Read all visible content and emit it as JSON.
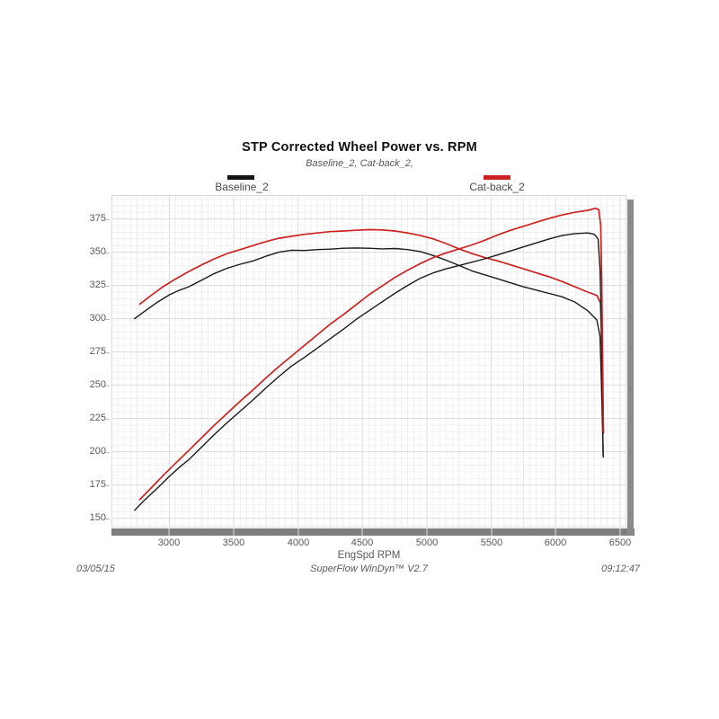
{
  "legend": [
    {
      "label": "Baseline_2",
      "color": "#141414"
    },
    {
      "label": "Cat-back_2",
      "color": "#cc2222"
    }
  ],
  "footer": {
    "date": "03/05/15",
    "app": "SuperFlow WinDyn™ V2.7",
    "time": "09:12:47"
  },
  "colors": {
    "baseline_line": "#1a1a1a",
    "catback_line": "#cc2222",
    "grid_major": "#dbdbdb",
    "grid_mid": "#e7e7e7",
    "grid_minor": "#f1f1f1",
    "axis_bar": "#7e7e7e"
  },
  "chart_data": {
    "type": "line",
    "title": "STP Corrected Wheel Power vs. RPM",
    "subtitle": "Baseline_2, Cat-back_2,",
    "xlabel": "EngSpd RPM",
    "ylabel": "",
    "xlim": [
      2550,
      6550
    ],
    "ylim": [
      143,
      393
    ],
    "x_ticks": [
      3000,
      3500,
      4000,
      4500,
      5000,
      5500,
      6000,
      6500
    ],
    "y_ticks": [
      150,
      175,
      200,
      225,
      250,
      275,
      300,
      325,
      350,
      375
    ],
    "grid": {
      "x_minor": 50,
      "x_mid": 250,
      "x_major": 500,
      "y_minor": 5,
      "y_major": 25,
      "on": true
    },
    "legend_position": "top",
    "series": [
      {
        "name": "Baseline_2 torque",
        "color": "#1a1a1a",
        "width": 1.4,
        "points": [
          [
            2730,
            300
          ],
          [
            2800,
            305
          ],
          [
            2900,
            312
          ],
          [
            3000,
            318
          ],
          [
            3080,
            321.5
          ],
          [
            3150,
            324
          ],
          [
            3250,
            329
          ],
          [
            3350,
            334
          ],
          [
            3450,
            338
          ],
          [
            3550,
            341
          ],
          [
            3650,
            343.5
          ],
          [
            3750,
            347
          ],
          [
            3850,
            350
          ],
          [
            3950,
            351.5
          ],
          [
            4050,
            351.3
          ],
          [
            4150,
            352
          ],
          [
            4250,
            352.3
          ],
          [
            4350,
            353
          ],
          [
            4450,
            353.2
          ],
          [
            4550,
            353
          ],
          [
            4650,
            352.5
          ],
          [
            4750,
            352.8
          ],
          [
            4850,
            352
          ],
          [
            4950,
            350.5
          ],
          [
            5050,
            347.5
          ],
          [
            5150,
            344
          ],
          [
            5250,
            340
          ],
          [
            5350,
            336
          ],
          [
            5450,
            333
          ],
          [
            5550,
            330
          ],
          [
            5650,
            327
          ],
          [
            5750,
            324
          ],
          [
            5850,
            321.5
          ],
          [
            5950,
            319
          ],
          [
            6050,
            316.5
          ],
          [
            6150,
            312.5
          ],
          [
            6250,
            306
          ],
          [
            6320,
            299
          ],
          [
            6345,
            287
          ],
          [
            6356,
            252
          ],
          [
            6364,
            218
          ],
          [
            6370,
            196
          ]
        ]
      },
      {
        "name": "Cat-back_2 torque",
        "color": "#cc2222",
        "width": 1.7,
        "points": [
          [
            2770,
            311
          ],
          [
            2850,
            317
          ],
          [
            2950,
            324
          ],
          [
            3050,
            330
          ],
          [
            3150,
            335.5
          ],
          [
            3250,
            340.5
          ],
          [
            3350,
            345
          ],
          [
            3450,
            349
          ],
          [
            3550,
            352
          ],
          [
            3650,
            355
          ],
          [
            3750,
            358
          ],
          [
            3850,
            360.5
          ],
          [
            3950,
            362
          ],
          [
            4050,
            363.5
          ],
          [
            4150,
            364.5
          ],
          [
            4250,
            365.5
          ],
          [
            4350,
            366
          ],
          [
            4450,
            366.5
          ],
          [
            4550,
            367
          ],
          [
            4650,
            366.8
          ],
          [
            4750,
            366
          ],
          [
            4850,
            364.5
          ],
          [
            4950,
            362.5
          ],
          [
            5050,
            360
          ],
          [
            5150,
            356.5
          ],
          [
            5250,
            352.5
          ],
          [
            5350,
            349
          ],
          [
            5450,
            346
          ],
          [
            5550,
            343.5
          ],
          [
            5650,
            340.5
          ],
          [
            5750,
            337.5
          ],
          [
            5850,
            334.5
          ],
          [
            5950,
            331.5
          ],
          [
            6050,
            328
          ],
          [
            6150,
            324
          ],
          [
            6250,
            320
          ],
          [
            6320,
            317.5
          ],
          [
            6348,
            312
          ],
          [
            6358,
            284
          ],
          [
            6366,
            244
          ],
          [
            6371,
            214
          ]
        ]
      },
      {
        "name": "Baseline_2 power",
        "color": "#1a1a1a",
        "width": 1.4,
        "points": [
          [
            2730,
            156
          ],
          [
            2800,
            163
          ],
          [
            2900,
            172
          ],
          [
            3000,
            181.5
          ],
          [
            3080,
            188.5
          ],
          [
            3150,
            194
          ],
          [
            3250,
            203.5
          ],
          [
            3350,
            213
          ],
          [
            3450,
            222
          ],
          [
            3550,
            230.5
          ],
          [
            3650,
            239
          ],
          [
            3750,
            248
          ],
          [
            3850,
            256.5
          ],
          [
            3950,
            264.5
          ],
          [
            4050,
            271
          ],
          [
            4150,
            278
          ],
          [
            4250,
            285
          ],
          [
            4350,
            292
          ],
          [
            4450,
            299.5
          ],
          [
            4550,
            306
          ],
          [
            4650,
            312.5
          ],
          [
            4750,
            319
          ],
          [
            4850,
            325
          ],
          [
            4950,
            330.5
          ],
          [
            5050,
            334.5
          ],
          [
            5150,
            337.5
          ],
          [
            5250,
            340
          ],
          [
            5350,
            342.5
          ],
          [
            5450,
            345
          ],
          [
            5550,
            348
          ],
          [
            5650,
            351
          ],
          [
            5750,
            354
          ],
          [
            5850,
            357
          ],
          [
            5950,
            360
          ],
          [
            6050,
            362.5
          ],
          [
            6150,
            364
          ],
          [
            6250,
            364.5
          ],
          [
            6300,
            363.5
          ],
          [
            6330,
            360
          ],
          [
            6345,
            338
          ],
          [
            6355,
            295
          ],
          [
            6363,
            245
          ],
          [
            6369,
            197
          ]
        ]
      },
      {
        "name": "Cat-back_2 power",
        "color": "#cc2222",
        "width": 1.7,
        "points": [
          [
            2770,
            164
          ],
          [
            2850,
            172
          ],
          [
            2950,
            182
          ],
          [
            3050,
            191.5
          ],
          [
            3150,
            201
          ],
          [
            3250,
            210.5
          ],
          [
            3350,
            220
          ],
          [
            3450,
            229
          ],
          [
            3550,
            238
          ],
          [
            3650,
            246.5
          ],
          [
            3750,
            255.5
          ],
          [
            3850,
            264
          ],
          [
            3950,
            272
          ],
          [
            4050,
            280
          ],
          [
            4150,
            288
          ],
          [
            4250,
            296
          ],
          [
            4350,
            303
          ],
          [
            4450,
            310.5
          ],
          [
            4550,
            318
          ],
          [
            4650,
            324.5
          ],
          [
            4750,
            331
          ],
          [
            4850,
            336.5
          ],
          [
            4950,
            341.5
          ],
          [
            5050,
            346
          ],
          [
            5150,
            349.5
          ],
          [
            5250,
            352.5
          ],
          [
            5350,
            355.5
          ],
          [
            5450,
            359
          ],
          [
            5550,
            363
          ],
          [
            5650,
            366.5
          ],
          [
            5750,
            369.5
          ],
          [
            5850,
            372.5
          ],
          [
            5950,
            375.5
          ],
          [
            6050,
            378
          ],
          [
            6150,
            380
          ],
          [
            6250,
            381.5
          ],
          [
            6310,
            383
          ],
          [
            6335,
            382
          ],
          [
            6350,
            370
          ],
          [
            6358,
            330
          ],
          [
            6365,
            270
          ],
          [
            6371,
            215
          ]
        ]
      }
    ]
  }
}
